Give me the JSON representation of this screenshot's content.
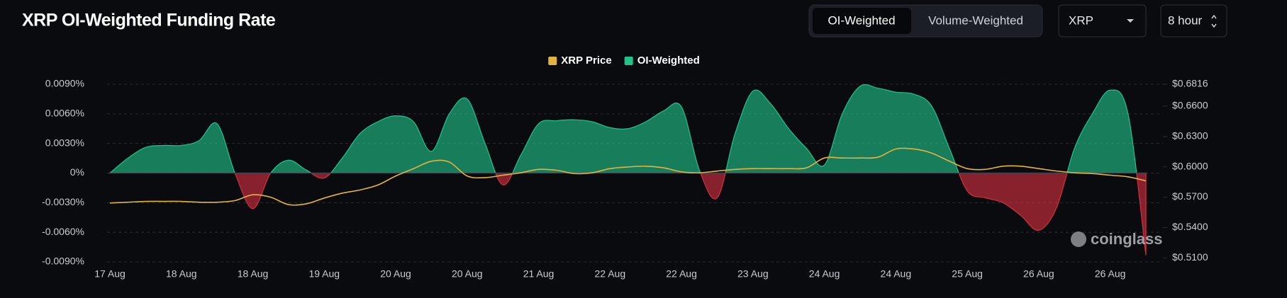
{
  "header": {
    "title": "XRP OI-Weighted Funding Rate",
    "toggle": [
      "OI-Weighted",
      "Volume-Weighted"
    ],
    "coin": "XRP",
    "interval": "8 hour"
  },
  "chart_data": {
    "type": "area-line",
    "watermark": "coinglass",
    "categories": [
      "17 Aug",
      null,
      null,
      null,
      "18 Aug",
      null,
      null,
      null,
      "18 Aug",
      null,
      null,
      null,
      "19 Aug",
      null,
      null,
      null,
      "20 Aug",
      null,
      null,
      null,
      "20 Aug",
      null,
      null,
      null,
      "21 Aug",
      null,
      null,
      null,
      "22 Aug",
      null,
      null,
      null,
      "22 Aug",
      null,
      null,
      null,
      "23 Aug",
      null,
      null,
      null,
      "24 Aug",
      null,
      null,
      null,
      "24 Aug",
      null,
      null,
      null,
      "25 Aug",
      null,
      null,
      null,
      "26 Aug",
      null,
      null,
      null,
      "26 Aug",
      null,
      null
    ],
    "series": [
      {
        "name": "XRP Price",
        "color": "#e3b341",
        "axis": "y2",
        "values": [
          0.5642,
          0.565,
          0.5658,
          0.5658,
          0.5658,
          0.565,
          0.565,
          0.5666,
          0.5723,
          0.5699,
          0.5626,
          0.5634,
          0.5691,
          0.5739,
          0.5771,
          0.582,
          0.5909,
          0.5982,
          0.6055,
          0.6047,
          0.5909,
          0.5893,
          0.5917,
          0.5941,
          0.5974,
          0.5966,
          0.5933,
          0.5941,
          0.5982,
          0.5998,
          0.6006,
          0.599,
          0.595,
          0.5941,
          0.5958,
          0.5974,
          0.5982,
          0.5982,
          0.5982,
          0.599,
          0.6087,
          0.6087,
          0.6087,
          0.6095,
          0.6176,
          0.6176,
          0.6136,
          0.6055,
          0.5982,
          0.5974,
          0.6006,
          0.6006,
          0.5982,
          0.5958,
          0.5941,
          0.5933,
          0.5917,
          0.5901,
          0.5861
        ]
      },
      {
        "name": "OI-Weighted",
        "color": "#20c38a",
        "negative_color": "#d32f3f",
        "axis": "y",
        "values": [
          0,
          0.0015,
          0.0026,
          0.0028,
          0.0028,
          0.0033,
          0.005,
          0.0,
          -0.0036,
          0.0,
          0.0013,
          0.0003,
          -0.0005,
          0.0015,
          0.004,
          0.0052,
          0.0058,
          0.0052,
          0.0022,
          0.006,
          0.0075,
          0.003,
          -0.0012,
          0.0018,
          0.005,
          0.0053,
          0.0054,
          0.0052,
          0.0046,
          0.0045,
          0.0052,
          0.0063,
          0.0067,
          0.0003,
          -0.0025,
          0.004,
          0.0083,
          0.007,
          0.0045,
          0.0025,
          0.0008,
          0.006,
          0.0088,
          0.0086,
          0.0082,
          0.008,
          0.0068,
          0.0025,
          -0.0018,
          -0.0025,
          -0.003,
          -0.0043,
          -0.0058,
          -0.0035,
          0.0025,
          0.006,
          0.0084,
          0.006,
          -0.0083
        ]
      }
    ],
    "ylim": [
      -0.009,
      0.009
    ],
    "yticks": [
      {
        "value": 0.009,
        "label": "0.0090%"
      },
      {
        "value": 0.006,
        "label": "0.0060%"
      },
      {
        "value": 0.003,
        "label": "0.0030%"
      },
      {
        "value": 0,
        "label": "0%"
      },
      {
        "value": -0.003,
        "label": "-0.0030%"
      },
      {
        "value": -0.006,
        "label": "-0.0060%"
      },
      {
        "value": -0.009,
        "label": "-0.0090%"
      }
    ],
    "y2lim": [
      0.506,
      0.6816
    ],
    "y2ticks": [
      {
        "value": 0.6816,
        "label": "$0.6816"
      },
      {
        "value": 0.66,
        "label": "$0.6600"
      },
      {
        "value": 0.63,
        "label": "$0.6300"
      },
      {
        "value": 0.6,
        "label": "$0.6000"
      },
      {
        "value": 0.57,
        "label": "$0.5700"
      },
      {
        "value": 0.54,
        "label": "$0.5400"
      },
      {
        "value": 0.51,
        "label": "$0.5100"
      }
    ],
    "grid": true,
    "legend": "top"
  }
}
